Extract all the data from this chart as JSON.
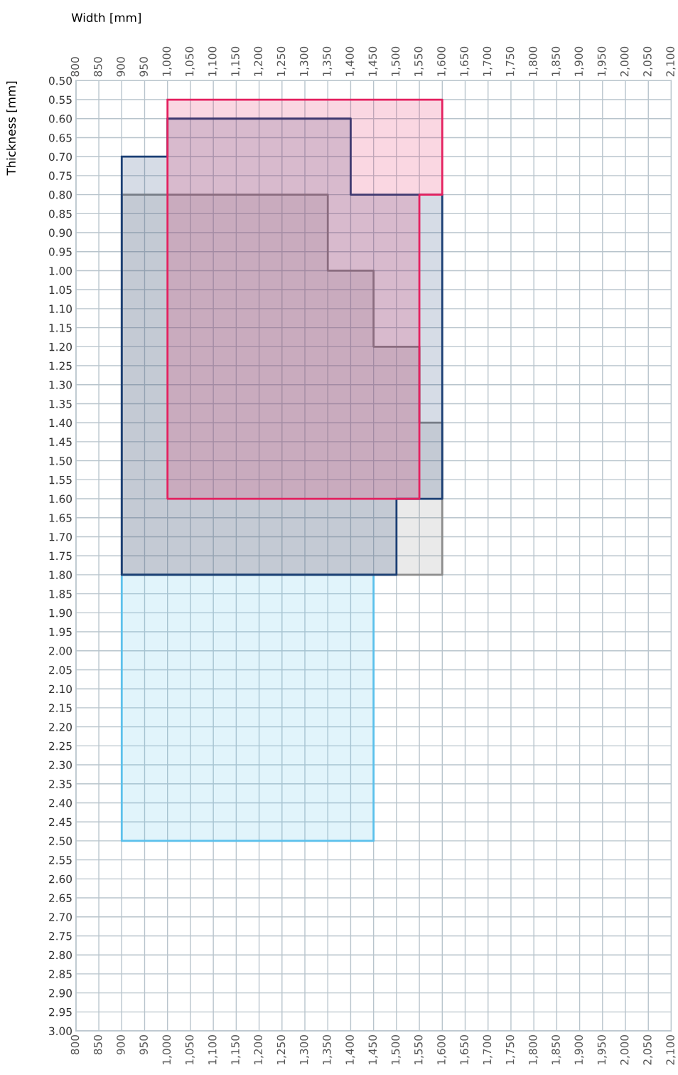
{
  "chart_data": {
    "type": "area",
    "x2label": "Width [mm]",
    "ylabel": "Thickness [mm]",
    "series": [
      {
        "color": "#5bc0eb",
        "x": [
          900,
          1450,
          1450,
          900,
          900
        ],
        "values": [
          1.8,
          1.8,
          2.5,
          2.5,
          1.8
        ]
      },
      {
        "color": "#8c8c8c",
        "x": [
          900,
          1350,
          1350,
          1450,
          1450,
          1550,
          1550,
          1600,
          1600,
          900,
          900
        ],
        "values": [
          0.8,
          0.8,
          1.0,
          1.0,
          1.2,
          1.2,
          1.4,
          1.4,
          1.8,
          1.8,
          0.8
        ]
      },
      {
        "color": "#1b3f74",
        "x": [
          900,
          1000,
          1000,
          1400,
          1400,
          1600,
          1600,
          1500,
          1500,
          900,
          900
        ],
        "values": [
          0.7,
          0.7,
          0.6,
          0.6,
          0.8,
          0.8,
          1.6,
          1.6,
          1.8,
          1.8,
          0.7
        ]
      },
      {
        "color": "#e4205f",
        "x": [
          1000,
          1600,
          1600,
          1550,
          1550,
          1000,
          1000
        ],
        "values": [
          0.55,
          0.55,
          0.8,
          0.8,
          1.6,
          1.6,
          0.55
        ]
      }
    ],
    "xlim": [
      800,
      2100
    ],
    "x2lim": [
      800,
      2100
    ],
    "ylim": [
      3.0,
      0.5
    ],
    "xticks": [
      800,
      850,
      900,
      950,
      {
        "value": 1000,
        "label": "1,000"
      },
      {
        "value": 1050,
        "label": "1,050"
      },
      {
        "value": 1100,
        "label": "1,100"
      },
      {
        "value": 1150,
        "label": "1,150"
      },
      {
        "value": 1200,
        "label": "1,200"
      },
      {
        "value": 1250,
        "label": "1,250"
      },
      {
        "value": 1300,
        "label": "1,300"
      },
      {
        "value": 1350,
        "label": "1,350"
      },
      {
        "value": 1400,
        "label": "1,400"
      },
      {
        "value": 1450,
        "label": "1,450"
      },
      {
        "value": 1500,
        "label": "1,500"
      },
      {
        "value": 1550,
        "label": "1,550"
      },
      {
        "value": 1600,
        "label": "1,600"
      },
      {
        "value": 1650,
        "label": "1,650"
      },
      {
        "value": 1700,
        "label": "1,700"
      },
      {
        "value": 1750,
        "label": "1,750"
      },
      {
        "value": 1800,
        "label": "1,800"
      },
      {
        "value": 1850,
        "label": "1,850"
      },
      {
        "value": 1900,
        "label": "1,900"
      },
      {
        "value": 1950,
        "label": "1,950"
      },
      {
        "value": 2000,
        "label": "2,000"
      },
      {
        "value": 2050,
        "label": "2,050"
      },
      {
        "value": 2100,
        "label": "2,100"
      }
    ],
    "x2ticks": [
      800,
      850,
      900,
      950,
      {
        "value": 1000,
        "label": "1,000"
      },
      {
        "value": 1050,
        "label": "1,050"
      },
      {
        "value": 1100,
        "label": "1,100"
      },
      {
        "value": 1150,
        "label": "1,150"
      },
      {
        "value": 1200,
        "label": "1,200"
      },
      {
        "value": 1250,
        "label": "1,250"
      },
      {
        "value": 1300,
        "label": "1,300"
      },
      {
        "value": 1350,
        "label": "1,350"
      },
      {
        "value": 1400,
        "label": "1,400"
      },
      {
        "value": 1450,
        "label": "1,450"
      },
      {
        "value": 1500,
        "label": "1,500"
      },
      {
        "value": 1550,
        "label": "1,550"
      },
      {
        "value": 1600,
        "label": "1,600"
      },
      {
        "value": 1650,
        "label": "1,650"
      },
      {
        "value": 1700,
        "label": "1,700"
      },
      {
        "value": 1750,
        "label": "1,750"
      },
      {
        "value": 1800,
        "label": "1,800"
      },
      {
        "value": 1850,
        "label": "1,850"
      },
      {
        "value": 1900,
        "label": "1,900"
      },
      {
        "value": 1950,
        "label": "1,950"
      },
      {
        "value": 2000,
        "label": "2,000"
      },
      {
        "value": 2050,
        "label": "2,050"
      },
      {
        "value": 2100,
        "label": "2,100"
      }
    ],
    "yticks": [
      {
        "value": 0.5,
        "label": "0.50"
      },
      {
        "value": 0.55,
        "label": "0.55"
      },
      {
        "value": 0.6,
        "label": "0.60"
      },
      {
        "value": 0.65,
        "label": "0.65"
      },
      {
        "value": 0.7,
        "label": "0.70"
      },
      {
        "value": 0.75,
        "label": "0.75"
      },
      {
        "value": 0.8,
        "label": "0.80"
      },
      {
        "value": 0.85,
        "label": "0.85"
      },
      {
        "value": 0.9,
        "label": "0.90"
      },
      {
        "value": 0.95,
        "label": "0.95"
      },
      {
        "value": 1.0,
        "label": "1.00"
      },
      {
        "value": 1.05,
        "label": "1.05"
      },
      {
        "value": 1.1,
        "label": "1.10"
      },
      {
        "value": 1.15,
        "label": "1.15"
      },
      {
        "value": 1.2,
        "label": "1.20"
      },
      {
        "value": 1.25,
        "label": "1.25"
      },
      {
        "value": 1.3,
        "label": "1.30"
      },
      {
        "value": 1.35,
        "label": "1.35"
      },
      {
        "value": 1.4,
        "label": "1.40"
      },
      {
        "value": 1.45,
        "label": "1.45"
      },
      {
        "value": 1.5,
        "label": "1.50"
      },
      {
        "value": 1.55,
        "label": "1.55"
      },
      {
        "value": 1.6,
        "label": "1.60"
      },
      {
        "value": 1.65,
        "label": "1.65"
      },
      {
        "value": 1.7,
        "label": "1.70"
      },
      {
        "value": 1.75,
        "label": "1.75"
      },
      {
        "value": 1.8,
        "label": "1.80"
      },
      {
        "value": 1.85,
        "label": "1.85"
      },
      {
        "value": 1.9,
        "label": "1.90"
      },
      {
        "value": 1.95,
        "label": "1.95"
      },
      {
        "value": 2.0,
        "label": "2.00"
      },
      {
        "value": 2.05,
        "label": "2.05"
      },
      {
        "value": 2.1,
        "label": "2.10"
      },
      {
        "value": 2.15,
        "label": "2.15"
      },
      {
        "value": 2.2,
        "label": "2.20"
      },
      {
        "value": 2.25,
        "label": "2.25"
      },
      {
        "value": 2.3,
        "label": "2.30"
      },
      {
        "value": 2.35,
        "label": "2.35"
      },
      {
        "value": 2.4,
        "label": "2.40"
      },
      {
        "value": 2.45,
        "label": "2.45"
      },
      {
        "value": 2.5,
        "label": "2.50"
      },
      {
        "value": 2.55,
        "label": "2.55"
      },
      {
        "value": 2.6,
        "label": "2.60"
      },
      {
        "value": 2.65,
        "label": "2.65"
      },
      {
        "value": 2.7,
        "label": "2.70"
      },
      {
        "value": 2.75,
        "label": "2.75"
      },
      {
        "value": 2.8,
        "label": "2.80"
      },
      {
        "value": 2.85,
        "label": "2.85"
      },
      {
        "value": 2.9,
        "label": "2.90"
      },
      {
        "value": 2.95,
        "label": "2.95"
      },
      {
        "value": 3.0,
        "label": "3.00"
      }
    ],
    "grid": true
  }
}
